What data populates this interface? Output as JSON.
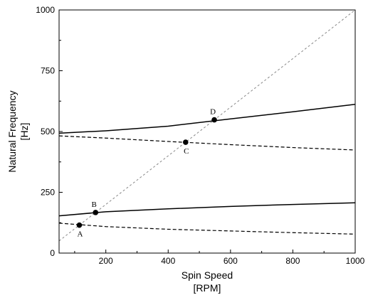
{
  "chart_data": {
    "type": "line",
    "xlabel_line1": "Spin Speed",
    "xlabel_line2": "[RPM]",
    "ylabel_line1": "Natural Frequency",
    "ylabel_line2": "[Hz]",
    "xlim": [
      50,
      1000
    ],
    "ylim": [
      0,
      1000
    ],
    "xticks": [
      200,
      400,
      600,
      800,
      1000
    ],
    "xtick_labels": [
      "200",
      "400",
      "600",
      "800",
      "1000"
    ],
    "yticks": [
      0,
      250,
      500,
      750,
      1000
    ],
    "ytick_labels": [
      "0",
      "250",
      "500",
      "750",
      "1000"
    ],
    "grid": false,
    "legend": "none",
    "series": [
      {
        "style": "solid",
        "color": "#000000",
        "x": [
          50,
          200,
          400,
          600,
          800,
          1000
        ],
        "y": [
          493,
          503,
          522,
          552,
          581,
          612
        ]
      },
      {
        "style": "dashed",
        "color": "#000000",
        "x": [
          50,
          200,
          400,
          600,
          800,
          1000
        ],
        "y": [
          482,
          473,
          459,
          446,
          434,
          424
        ]
      },
      {
        "style": "solid",
        "color": "#000000",
        "x": [
          50,
          200,
          400,
          600,
          800,
          1000
        ],
        "y": [
          153,
          170,
          182,
          192,
          200,
          207
        ]
      },
      {
        "style": "dashed",
        "color": "#000000",
        "x": [
          50,
          200,
          400,
          600,
          800,
          1000
        ],
        "y": [
          123,
          109,
          98,
          91,
          84,
          78
        ]
      },
      {
        "style": "dotted-gray",
        "color": "#888888",
        "x": [
          50,
          1000
        ],
        "y": [
          50,
          1000
        ]
      }
    ],
    "points": [
      {
        "label": "A",
        "x": 115,
        "y": 115,
        "label_pos": "below"
      },
      {
        "label": "B",
        "x": 167,
        "y": 167,
        "label_pos": "above"
      },
      {
        "label": "C",
        "x": 456,
        "y": 456,
        "label_pos": "below"
      },
      {
        "label": "D",
        "x": 548,
        "y": 548,
        "label_pos": "above"
      }
    ]
  }
}
